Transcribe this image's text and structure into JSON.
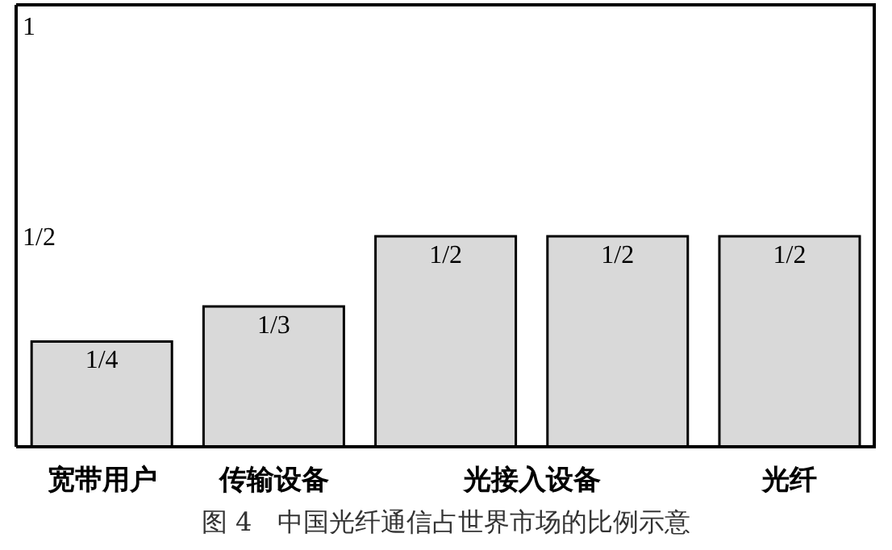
{
  "chart_data": {
    "type": "bar",
    "categories": [
      "宽带用户",
      "传输设备",
      "光接入设备",
      null,
      "光纤"
    ],
    "values": [
      0.25,
      0.3333,
      0.5,
      0.5,
      0.5
    ],
    "value_labels": [
      "1/4",
      "1/3",
      "1/2",
      "1/2",
      "1/2"
    ],
    "color": "#d9d9d9",
    "ylim": [
      0,
      1.05
    ],
    "yticks": [
      {
        "value": 0.5,
        "label": "1/2"
      },
      {
        "value": 1,
        "label": "1"
      }
    ],
    "annotations": [
      "图 4　中国光纤通信占世界市场的比例示意"
    ]
  }
}
